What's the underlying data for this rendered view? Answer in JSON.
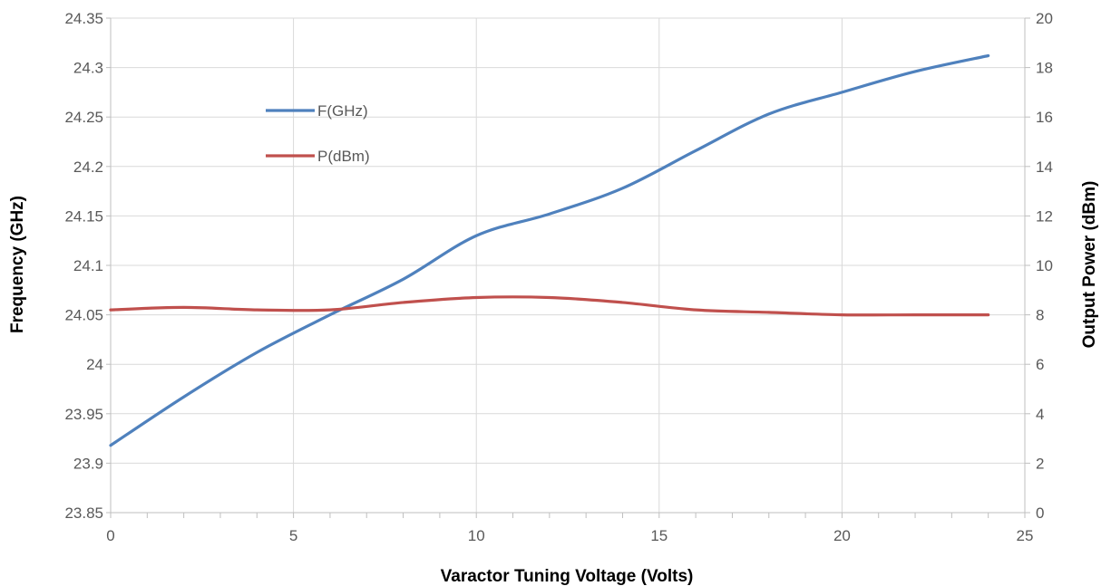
{
  "chart_data": {
    "type": "line",
    "title": "",
    "xlabel": "Varactor Tuning Voltage (Volts)",
    "ylabel": "Frequency (GHz)",
    "y2label": "Output Power (dBm)",
    "xlim": [
      0,
      25
    ],
    "ylim": [
      23.85,
      24.35
    ],
    "y2lim": [
      0,
      20
    ],
    "x_ticks": [
      "0",
      "5",
      "10",
      "15",
      "20",
      "25"
    ],
    "y_ticks": [
      "23.85",
      "23.9",
      "23.95",
      "24",
      "24.05",
      "24.1",
      "24.15",
      "24.2",
      "24.25",
      "24.3",
      "24.35"
    ],
    "y2_ticks": [
      "0",
      "2",
      "4",
      "6",
      "8",
      "10",
      "12",
      "14",
      "16",
      "18",
      "20"
    ],
    "grid": true,
    "legend_position": "upper-left-inside",
    "series": [
      {
        "name": "F(GHz)",
        "axis": "left",
        "color": "#4f81bd",
        "x": [
          0,
          2,
          4,
          6,
          8,
          10,
          12,
          14,
          16,
          18,
          20,
          22,
          24
        ],
        "y": [
          23.918,
          23.967,
          24.012,
          24.05,
          24.086,
          24.13,
          24.152,
          24.178,
          24.216,
          24.253,
          24.275,
          24.296,
          24.312
        ]
      },
      {
        "name": "P(dBm)",
        "axis": "right",
        "color": "#c0504d",
        "x": [
          0,
          2,
          4,
          6,
          8,
          10,
          12,
          14,
          16,
          18,
          20,
          22,
          24
        ],
        "y": [
          8.2,
          8.3,
          8.2,
          8.2,
          8.5,
          8.7,
          8.7,
          8.5,
          8.2,
          8.1,
          8.0,
          8.0,
          8.0
        ]
      }
    ]
  }
}
